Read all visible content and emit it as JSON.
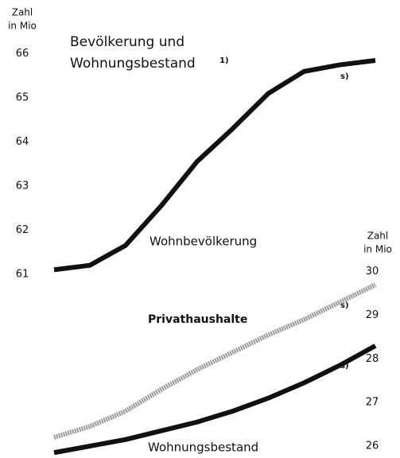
{
  "chart_data": {
    "type": "line",
    "title": [
      "Bevölkerung und",
      "Wohnungsbestand"
    ],
    "title_note": "1)",
    "ylabel": [
      "Zahl",
      "in Mio"
    ],
    "y2label": [
      "Zahl",
      "in Mio"
    ],
    "x": [
      0,
      1,
      2,
      3,
      4,
      5,
      6,
      7,
      8,
      9
    ],
    "xlim": [
      0,
      9
    ],
    "ylim": [
      56.9,
      66.5
    ],
    "yticks": [
      61,
      62,
      63,
      64,
      65,
      66
    ],
    "y2lim": [
      25.8,
      35.5
    ],
    "y2ticks": [
      26,
      27,
      28,
      29,
      30
    ],
    "series": [
      {
        "name": "Wohnbevölkerung",
        "color": "#111111",
        "values": [
          61.1,
          61.2,
          61.65,
          62.55,
          63.55,
          64.3,
          65.1,
          65.6,
          65.75,
          65.85
        ]
      },
      {
        "name": "Privathaushalte",
        "color": "#9a9a9a",
        "axis": "y2",
        "values": [
          26.2,
          26.45,
          26.8,
          27.3,
          27.75,
          28.15,
          28.55,
          28.9,
          29.3,
          29.7
        ]
      },
      {
        "name": "Wohnungsbestand",
        "color": "#111111",
        "axis": "y2",
        "values": [
          25.85,
          26.0,
          26.15,
          26.35,
          26.55,
          26.8,
          27.1,
          27.45,
          27.85,
          28.3
        ]
      }
    ],
    "annotations": [
      "s)",
      "s)",
      "s)"
    ]
  }
}
